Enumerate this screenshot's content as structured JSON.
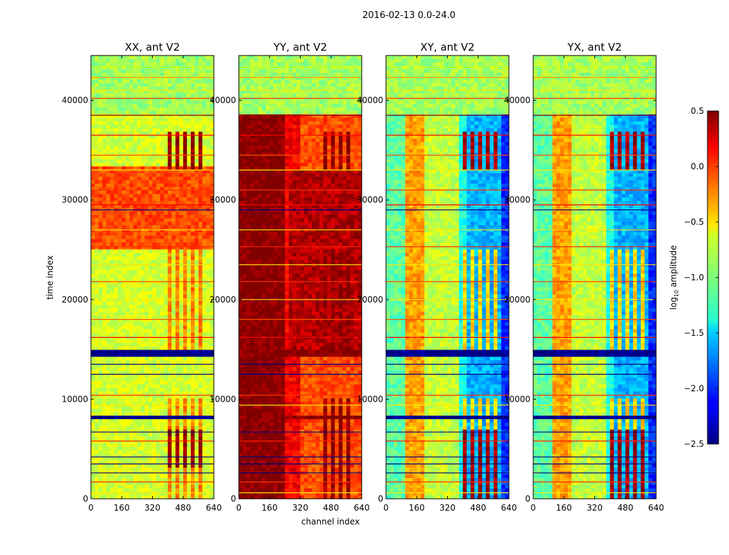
{
  "chart_data": {
    "type": "heatmap",
    "suptitle": "2016-02-13 0.0-24.0",
    "xlabel": "channel index",
    "ylabel": "time index",
    "xlim": [
      0,
      640
    ],
    "ylim": [
      0,
      44500
    ],
    "xticks": [
      "0",
      "160",
      "320",
      "480",
      "640"
    ],
    "yticks": [
      "0",
      "10000",
      "20000",
      "30000",
      "40000"
    ],
    "panels": [
      {
        "title": "XX, ant V2",
        "pol": "XX"
      },
      {
        "title": "YY, ant V2",
        "pol": "YY"
      },
      {
        "title": "XY, ant V2",
        "pol": "XY"
      },
      {
        "title": "YX, ant V2",
        "pol": "YX"
      }
    ],
    "colorbar": {
      "label_prefix": "log",
      "label_sub": "10",
      "label_suffix": " amplitude",
      "range": [
        -2.5,
        0.5
      ],
      "ticks": [
        "0.5",
        "0.0",
        "−0.5",
        "−1.0",
        "−1.5",
        "−2.0",
        "−2.5"
      ],
      "colormap": "jet"
    }
  }
}
